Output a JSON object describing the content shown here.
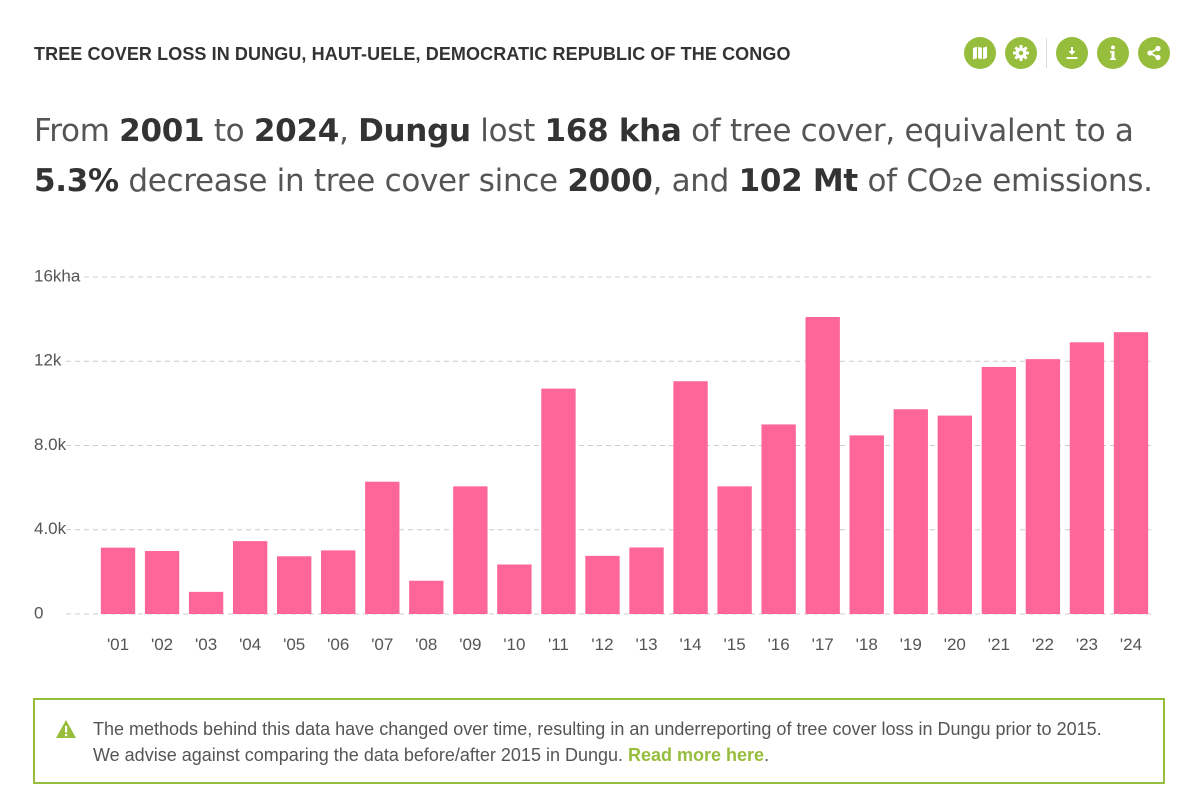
{
  "widget": {
    "title": "TREE COVER LOSS IN DUNGU, HAUT-UELE, DEMOCRATIC REPUBLIC OF THE CONGO",
    "toolbar": [
      {
        "name": "map-button",
        "icon": "map-icon"
      },
      {
        "name": "settings-button",
        "icon": "gear-icon"
      },
      {
        "name": "download-button",
        "icon": "download-icon"
      },
      {
        "name": "info-button",
        "icon": "info-icon"
      },
      {
        "name": "share-button",
        "icon": "share-icon"
      }
    ],
    "accent_color": "#97bd3d"
  },
  "sentence": {
    "part1": "From ",
    "start_year": "2001",
    "part2": " to ",
    "end_year": "2024",
    "part3": ", ",
    "location": "Dungu",
    "part4": " lost ",
    "loss": "168 kha",
    "part5": " of tree cover, equivalent to a ",
    "percent": "5.3%",
    "part6": " decrease in tree cover since ",
    "baseline_year": "2000",
    "part7": ", and ",
    "emissions": "102 Mt",
    "part8": " of CO₂e emissions."
  },
  "chart_data": {
    "type": "bar",
    "categories": [
      "'01",
      "'02",
      "'03",
      "'04",
      "'05",
      "'06",
      "'07",
      "'08",
      "'09",
      "'10",
      "'11",
      "'12",
      "'13",
      "'14",
      "'15",
      "'16",
      "'17",
      "'18",
      "'19",
      "'20",
      "'21",
      "'22",
      "'23",
      "'24"
    ],
    "series": [
      {
        "values": [
          3150,
          2990,
          1050,
          3460,
          2740,
          3020,
          6280,
          1580,
          6060,
          2350,
          10700,
          2760,
          3160,
          11050,
          6060,
          9000,
          14100,
          8480,
          9720,
          9420,
          11730,
          12100,
          12900,
          13380
        ],
        "color": "#fe6598"
      }
    ],
    "yticks": [
      0,
      4000,
      8000,
      12000,
      16000
    ],
    "ytick_labels": [
      "0",
      "4.0k",
      "8.0k",
      "12k",
      "16kha"
    ],
    "ylim": [
      0,
      16000
    ],
    "grid": true,
    "xlabel": "",
    "ylabel": ""
  },
  "notice": {
    "text": "The methods behind this data have changed over time, resulting in an underreporting of tree cover loss in Dungu prior to 2015. We advise against comparing the data before/after 2015 in Dungu. ",
    "link": "Read more here",
    "end": ".",
    "icon": "warning-icon"
  }
}
